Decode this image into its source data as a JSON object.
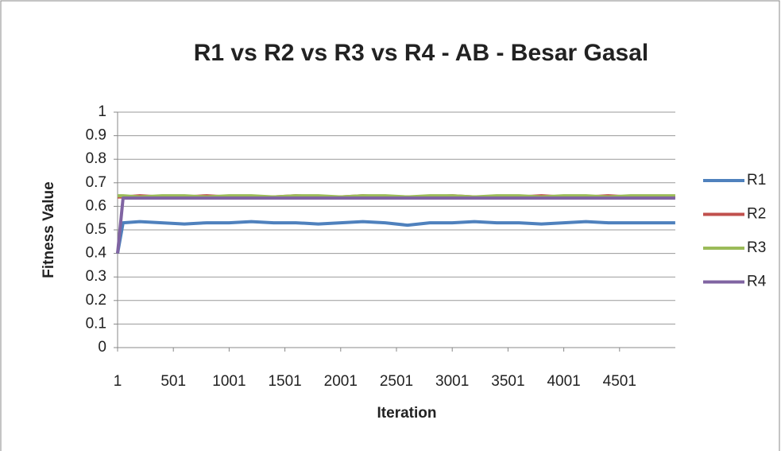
{
  "chart_data": {
    "type": "line",
    "title": "R1 vs R2 vs R3 vs R4 - AB - Besar Gasal",
    "x_label": "Iteration",
    "y_label": "Fitness Value",
    "x": [
      1,
      50,
      200,
      400,
      600,
      800,
      1000,
      1200,
      1400,
      1600,
      1800,
      2000,
      2200,
      2400,
      2600,
      2800,
      3000,
      3200,
      3400,
      3600,
      3800,
      4000,
      4200,
      4400,
      4600,
      4800,
      5000
    ],
    "series": [
      {
        "name": "R1",
        "color": "#4f81bd",
        "values": [
          0.4,
          0.53,
          0.535,
          0.53,
          0.525,
          0.53,
          0.53,
          0.535,
          0.53,
          0.53,
          0.525,
          0.53,
          0.535,
          0.53,
          0.52,
          0.53,
          0.53,
          0.535,
          0.53,
          0.53,
          0.525,
          0.53,
          0.535,
          0.53,
          0.53,
          0.53,
          0.53
        ]
      },
      {
        "name": "R2",
        "color": "#c0504d",
        "values": [
          0.64,
          0.64,
          0.645,
          0.64,
          0.64,
          0.645,
          0.64,
          0.64,
          0.64,
          0.645,
          0.64,
          0.64,
          0.645,
          0.64,
          0.64,
          0.64,
          0.645,
          0.64,
          0.64,
          0.64,
          0.645,
          0.64,
          0.64,
          0.645,
          0.64,
          0.64,
          0.64
        ]
      },
      {
        "name": "R3",
        "color": "#9bbb59",
        "values": [
          0.645,
          0.645,
          0.64,
          0.645,
          0.645,
          0.64,
          0.645,
          0.645,
          0.64,
          0.645,
          0.645,
          0.64,
          0.645,
          0.645,
          0.64,
          0.645,
          0.645,
          0.64,
          0.645,
          0.645,
          0.64,
          0.645,
          0.645,
          0.64,
          0.645,
          0.645,
          0.645
        ]
      },
      {
        "name": "R4",
        "color": "#8064a2",
        "values": [
          0.4,
          0.635,
          0.635,
          0.635,
          0.635,
          0.635,
          0.635,
          0.635,
          0.635,
          0.635,
          0.635,
          0.635,
          0.635,
          0.635,
          0.635,
          0.635,
          0.635,
          0.635,
          0.635,
          0.635,
          0.635,
          0.635,
          0.635,
          0.635,
          0.635,
          0.635,
          0.635
        ]
      }
    ],
    "xlim": [
      1,
      5001
    ],
    "xticks": [
      1,
      501,
      1001,
      1501,
      2001,
      2501,
      3001,
      3501,
      4001,
      4501
    ],
    "ylim": [
      0,
      1
    ],
    "yticks": [
      0,
      0.1,
      0.2,
      0.3,
      0.4,
      0.5,
      0.6,
      0.7,
      0.8,
      0.9,
      1
    ],
    "grid": true,
    "legend": "right"
  }
}
